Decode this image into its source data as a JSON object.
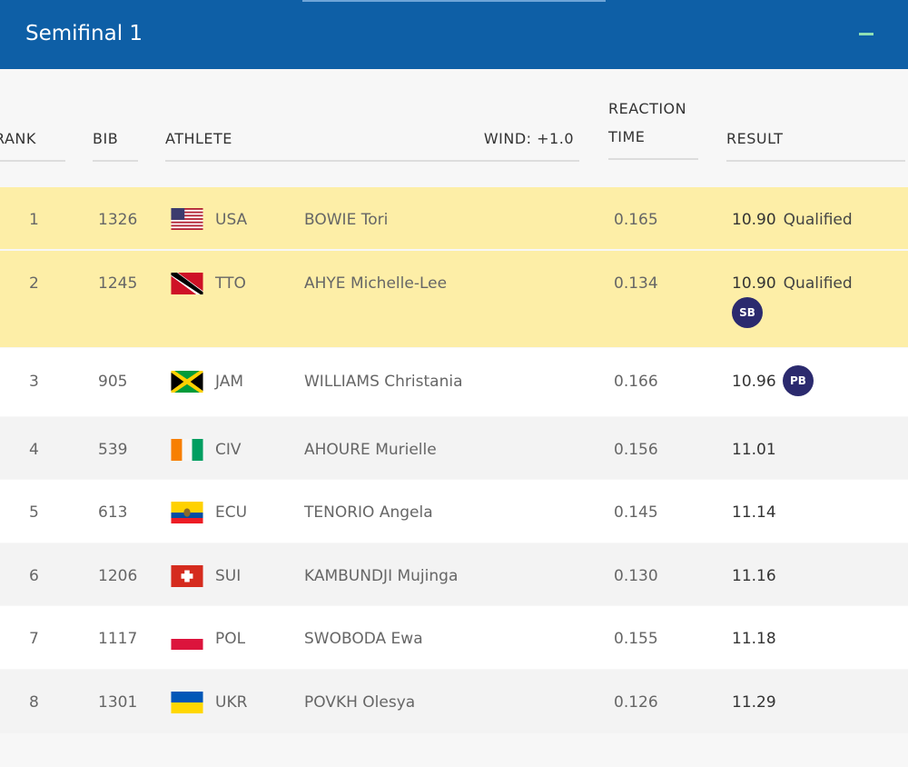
{
  "panel": {
    "title": "Semifinal 1"
  },
  "columns": {
    "rank": "RANK",
    "bib": "BIB",
    "athlete": "ATHLETE",
    "wind": "WIND: +1.0",
    "reaction_line1": "REACTION",
    "reaction_line2": "TIME",
    "result": "RESULT"
  },
  "rows": [
    {
      "rank": "1",
      "bib": "1326",
      "country": "USA",
      "athlete": "BOWIE Tori",
      "reaction": "0.165",
      "result": "10.90",
      "status": "Qualified",
      "badge": ""
    },
    {
      "rank": "2",
      "bib": "1245",
      "country": "TTO",
      "athlete": "AHYE Michelle-Lee",
      "reaction": "0.134",
      "result": "10.90",
      "status": "Qualified",
      "badge": "SB"
    },
    {
      "rank": "3",
      "bib": "905",
      "country": "JAM",
      "athlete": "WILLIAMS Christania",
      "reaction": "0.166",
      "result": "10.96",
      "status": "",
      "badge": "PB"
    },
    {
      "rank": "4",
      "bib": "539",
      "country": "CIV",
      "athlete": "AHOURE Murielle",
      "reaction": "0.156",
      "result": "11.01",
      "status": "",
      "badge": ""
    },
    {
      "rank": "5",
      "bib": "613",
      "country": "ECU",
      "athlete": "TENORIO Angela",
      "reaction": "0.145",
      "result": "11.14",
      "status": "",
      "badge": ""
    },
    {
      "rank": "6",
      "bib": "1206",
      "country": "SUI",
      "athlete": "KAMBUNDJI Mujinga",
      "reaction": "0.130",
      "result": "11.16",
      "status": "",
      "badge": ""
    },
    {
      "rank": "7",
      "bib": "1117",
      "country": "POL",
      "athlete": "SWOBODA Ewa",
      "reaction": "0.155",
      "result": "11.18",
      "status": "",
      "badge": ""
    },
    {
      "rank": "8",
      "bib": "1301",
      "country": "UKR",
      "athlete": "POVKH Olesya",
      "reaction": "0.126",
      "result": "11.29",
      "status": "",
      "badge": ""
    }
  ],
  "colors": {
    "header_bg": "#0e5fa6",
    "qualified_row": "#fdeea7",
    "badge_bg": "#2b2a6e"
  }
}
